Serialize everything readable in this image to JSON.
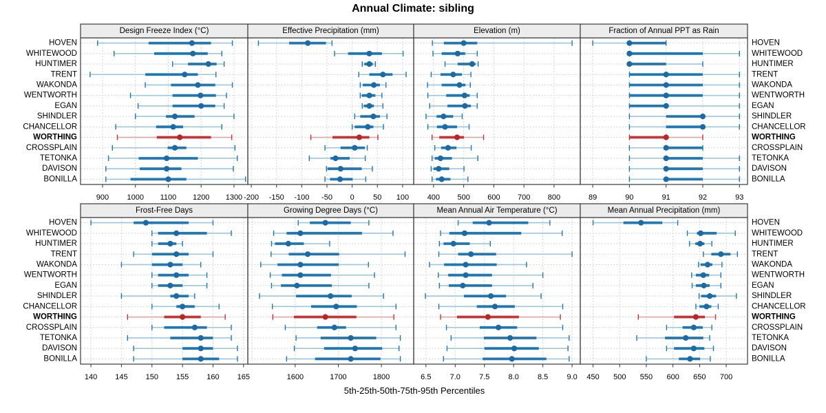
{
  "title": "Annual Climate: sibling",
  "footer_caption": "5th-25th-50th-75th-95th Percentiles",
  "percentile_labels": [
    "5th",
    "25th",
    "50th",
    "75th",
    "95th"
  ],
  "categories": [
    "HOVEN",
    "WHITEWOOD",
    "HUNTIMER",
    "TRENT",
    "WAKONDA",
    "WENTWORTH",
    "EGAN",
    "SHINDLER",
    "CHANCELLOR",
    "WORTHING",
    "CROSSPLAIN",
    "TETONKA",
    "DAVISON",
    "BONILLA"
  ],
  "highlight_category": "WORTHING",
  "colors": {
    "series_line": "#1f77b4",
    "series_faint": "#9cc6e0",
    "series_dot": "#1b6aa5",
    "highlight_line": "#c53434",
    "highlight_faint": "#e2a3a3",
    "highlight_dot": "#b52828",
    "grid": "#c9c9c9",
    "panel_border": "#3a3a3a",
    "strip_bg": "#ececec",
    "text": "#000000"
  },
  "chart_data": {
    "type": "boxplot",
    "orientation": "horizontal",
    "panel_grid": [
      2,
      4
    ],
    "legend_position": "none",
    "panels": [
      {
        "title": "Design Freeze Index (°C)",
        "xlim": [
          833,
          1342
        ],
        "tick_values": [
          900,
          1000,
          1100,
          1200,
          1300
        ],
        "tick_labels": [
          "900",
          "1000",
          "1100",
          "1200",
          "1300"
        ],
        "grid_values": [
          900,
          1000,
          1100,
          1200,
          1300
        ],
        "rows": [
          [
            885,
            1040,
            1172,
            1230,
            1295
          ],
          [
            935,
            1057,
            1175,
            1220,
            1263
          ],
          [
            1113,
            1160,
            1222,
            1247,
            1270
          ],
          [
            862,
            1030,
            1150,
            1190,
            1245
          ],
          [
            1030,
            1108,
            1190,
            1243,
            1295
          ],
          [
            985,
            1113,
            1198,
            1245,
            1277
          ],
          [
            1008,
            1113,
            1200,
            1243,
            1270
          ],
          [
            1000,
            1093,
            1120,
            1180,
            1300
          ],
          [
            940,
            1063,
            1115,
            1145,
            1263
          ],
          [
            945,
            1065,
            1135,
            1230,
            1293
          ],
          [
            930,
            1098,
            1120,
            1155,
            1303
          ],
          [
            918,
            1010,
            1095,
            1190,
            1310
          ],
          [
            910,
            1013,
            1095,
            1140,
            1298
          ],
          [
            910,
            985,
            1100,
            1155,
            1335
          ]
        ]
      },
      {
        "title": "Effective Precipitation (mm)",
        "xlim": [
          -207,
          122
        ],
        "tick_values": [
          -200,
          -150,
          -100,
          -50,
          0,
          50,
          100
        ],
        "tick_labels": [
          "-200",
          "-150",
          "-100",
          "-50",
          "0",
          "50",
          "100"
        ],
        "grid_values": [
          -200,
          -150,
          -100,
          -50,
          0,
          50,
          100
        ],
        "rows": [
          [
            -186,
            -125,
            -88,
            -52,
            -40
          ],
          [
            -35,
            -8,
            34,
            59,
            101
          ],
          [
            20,
            24,
            34,
            41,
            46
          ],
          [
            13,
            34,
            61,
            80,
            107
          ],
          [
            16,
            21,
            43,
            55,
            67
          ],
          [
            16,
            19,
            34,
            46,
            59
          ],
          [
            20,
            23,
            34,
            43,
            61
          ],
          [
            5,
            16,
            42,
            55,
            69
          ],
          [
            0,
            5,
            31,
            42,
            62
          ],
          [
            -82,
            -39,
            14,
            34,
            51
          ],
          [
            -54,
            -23,
            5,
            25,
            30
          ],
          [
            -85,
            -43,
            -33,
            -5,
            26
          ],
          [
            -51,
            -49,
            -23,
            19,
            40
          ],
          [
            -54,
            -44,
            -24,
            1,
            27
          ]
        ]
      },
      {
        "title": "Elevation (m)",
        "xlim": [
          334,
          887
        ],
        "tick_values": [
          400,
          500,
          600,
          700,
          800
        ],
        "tick_labels": [
          "400",
          "500",
          "600",
          "700",
          "800"
        ],
        "grid_values": [
          400,
          500,
          600,
          700,
          800
        ],
        "rows": [
          [
            396,
            434,
            500,
            545,
            860
          ],
          [
            398,
            427,
            480,
            505,
            545
          ],
          [
            438,
            480,
            528,
            539,
            548
          ],
          [
            392,
            423,
            465,
            494,
            524
          ],
          [
            380,
            427,
            486,
            506,
            522
          ],
          [
            381,
            442,
            503,
            520,
            545
          ],
          [
            387,
            446,
            504,
            524,
            545
          ],
          [
            375,
            410,
            433,
            465,
            495
          ],
          [
            381,
            411,
            438,
            478,
            518
          ],
          [
            395,
            419,
            478,
            501,
            566
          ],
          [
            404,
            425,
            448,
            476,
            525
          ],
          [
            395,
            404,
            423,
            461,
            547
          ],
          [
            392,
            400,
            417,
            452,
            501
          ],
          [
            395,
            408,
            427,
            456,
            514
          ]
        ]
      },
      {
        "title": "Fraction of Annual PPT as Rain",
        "xlim": [
          88.66,
          93.22
        ],
        "tick_values": [
          89,
          90,
          91,
          92,
          93
        ],
        "tick_labels": [
          "89",
          "90",
          "91",
          "92",
          "93"
        ],
        "grid_values": [
          89,
          90,
          91,
          92,
          93
        ],
        "rows": [
          [
            89,
            90,
            90,
            91,
            91
          ],
          [
            90,
            90,
            90,
            92,
            93
          ],
          [
            90,
            90,
            90,
            91,
            92
          ],
          [
            90,
            90,
            91,
            92,
            93
          ],
          [
            90,
            90,
            91,
            92,
            93
          ],
          [
            90,
            90,
            91,
            92,
            93
          ],
          [
            90,
            90,
            91,
            91,
            93
          ],
          [
            90,
            91,
            92,
            92,
            93
          ],
          [
            90,
            91,
            92,
            92,
            93
          ],
          [
            90,
            90,
            91,
            91,
            92
          ],
          [
            90,
            91,
            91,
            92,
            92
          ],
          [
            90,
            91,
            91,
            92,
            93
          ],
          [
            90,
            91,
            91,
            92,
            93
          ],
          [
            90,
            91,
            91,
            92,
            93
          ]
        ]
      },
      {
        "title": "Frost-Free Days",
        "xlim": [
          138.3,
          165.7
        ],
        "tick_values": [
          140,
          145,
          150,
          155,
          160,
          165
        ],
        "tick_labels": [
          "140",
          "145",
          "150",
          "155",
          "160",
          "165"
        ],
        "grid_values": [
          140,
          145,
          150,
          155,
          160,
          165
        ],
        "rows": [
          [
            140,
            147,
            149,
            156,
            160
          ],
          [
            150,
            151,
            154,
            159,
            163
          ],
          [
            150,
            151,
            153,
            154,
            155
          ],
          [
            147,
            150,
            154,
            156,
            160
          ],
          [
            145,
            150,
            153,
            155,
            158
          ],
          [
            150,
            151,
            154,
            156,
            159
          ],
          [
            150,
            151,
            153,
            155,
            159
          ],
          [
            145,
            153,
            154,
            156,
            157
          ],
          [
            150,
            154,
            155,
            157,
            161
          ],
          [
            146,
            152,
            155,
            158,
            162
          ],
          [
            150,
            152,
            157,
            159,
            163
          ],
          [
            146,
            153,
            158,
            160,
            163
          ],
          [
            147,
            155,
            158,
            160,
            164
          ],
          [
            147,
            155,
            158,
            161,
            164
          ]
        ]
      },
      {
        "title": "Growing Degree Days (°C)",
        "xlim": [
          1490,
          1875
        ],
        "tick_values": [
          1600,
          1700,
          1800
        ],
        "tick_labels": [
          "1600",
          "1700",
          "1800"
        ],
        "grid_values": [
          1500,
          1600,
          1700,
          1800
        ],
        "rows": [
          [
            1607,
            1634,
            1670,
            1729,
            1771
          ],
          [
            1550,
            1580,
            1612,
            1755,
            1827
          ],
          [
            1545,
            1553,
            1584,
            1620,
            1680
          ],
          [
            1544,
            1585,
            1629,
            1702,
            1855
          ],
          [
            1520,
            1559,
            1612,
            1701,
            1770
          ],
          [
            1542,
            1569,
            1612,
            1683,
            1784
          ],
          [
            1545,
            1567,
            1604,
            1685,
            1771
          ],
          [
            1517,
            1602,
            1682,
            1731,
            1805
          ],
          [
            1547,
            1637,
            1695,
            1743,
            1834
          ],
          [
            1548,
            1597,
            1670,
            1742,
            1829
          ],
          [
            1577,
            1651,
            1691,
            1718,
            1834
          ],
          [
            1602,
            1659,
            1729,
            1788,
            1844
          ],
          [
            1598,
            1667,
            1739,
            1802,
            1841
          ],
          [
            1580,
            1646,
            1729,
            1798,
            1844
          ]
        ]
      },
      {
        "title": "Mean Annual Air Temperature (°C)",
        "xlim": [
          6.29,
          9.14
        ],
        "tick_values": [
          6.5,
          7.0,
          7.5,
          8.0,
          8.5,
          9.0
        ],
        "tick_labels": [
          "6.5",
          "7.0",
          "7.5",
          "8.0",
          "8.5",
          "9.0"
        ],
        "grid_values": [
          6.5,
          7.0,
          7.5,
          8.0,
          8.5,
          9.0
        ],
        "rows": [
          [
            7.05,
            7.3,
            7.58,
            8.25,
            8.62
          ],
          [
            6.75,
            6.9,
            7.16,
            8.13,
            8.83
          ],
          [
            6.73,
            6.8,
            6.97,
            7.25,
            7.6
          ],
          [
            6.72,
            7.05,
            7.27,
            7.7,
            9.0
          ],
          [
            6.56,
            6.81,
            7.18,
            7.71,
            8.22
          ],
          [
            6.71,
            6.88,
            7.18,
            7.63,
            8.5
          ],
          [
            6.73,
            6.89,
            7.13,
            7.63,
            8.33
          ],
          [
            6.49,
            7.15,
            7.61,
            7.87,
            8.47
          ],
          [
            6.72,
            7.37,
            7.68,
            8.02,
            8.84
          ],
          [
            6.75,
            7.03,
            7.56,
            8.09,
            8.8
          ],
          [
            6.85,
            7.42,
            7.74,
            8.06,
            8.84
          ],
          [
            6.93,
            7.49,
            7.94,
            8.39,
            8.95
          ],
          [
            6.86,
            7.5,
            8.01,
            8.43,
            8.93
          ],
          [
            6.8,
            7.47,
            7.97,
            8.56,
            8.95
          ]
        ]
      },
      {
        "title": "Mean Annual Precipitation (mm)",
        "xlim": [
          426,
          740
        ],
        "tick_values": [
          450,
          500,
          550,
          600,
          650,
          700
        ],
        "tick_labels": [
          "450",
          "500",
          "550",
          "600",
          "650",
          "700"
        ],
        "grid_values": [
          450,
          500,
          550,
          600,
          650,
          700
        ],
        "rows": [
          [
            450,
            507,
            540,
            580,
            609
          ],
          [
            627,
            645,
            652,
            682,
            717
          ],
          [
            631,
            642,
            651,
            659,
            673
          ],
          [
            657,
            672,
            690,
            708,
            721
          ],
          [
            648,
            652,
            665,
            674,
            692
          ],
          [
            635,
            643,
            657,
            668,
            690
          ],
          [
            636,
            643,
            658,
            669,
            690
          ],
          [
            649,
            653,
            669,
            681,
            719
          ],
          [
            643,
            650,
            663,
            672,
            685
          ],
          [
            535,
            602,
            643,
            660,
            680
          ],
          [
            588,
            618,
            639,
            656,
            673
          ],
          [
            532,
            585,
            624,
            657,
            669
          ],
          [
            588,
            602,
            639,
            659,
            676
          ],
          [
            550,
            611,
            632,
            651,
            670
          ]
        ]
      }
    ]
  }
}
